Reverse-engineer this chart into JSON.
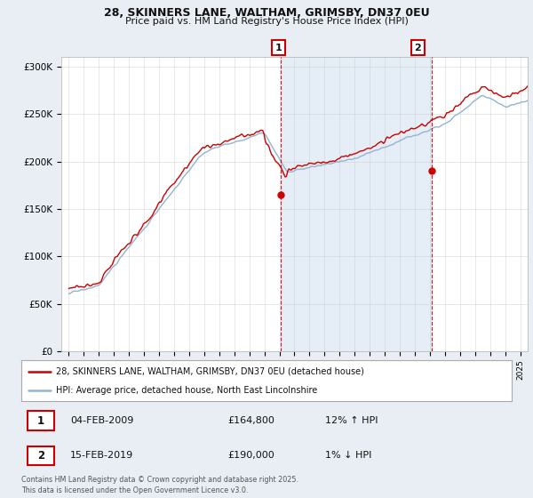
{
  "title1": "28, SKINNERS LANE, WALTHAM, GRIMSBY, DN37 0EU",
  "title2": "Price paid vs. HM Land Registry's House Price Index (HPI)",
  "legend_line1": "28, SKINNERS LANE, WALTHAM, GRIMSBY, DN37 0EU (detached house)",
  "legend_line2": "HPI: Average price, detached house, North East Lincolnshire",
  "footnote": "Contains HM Land Registry data © Crown copyright and database right 2025.\nThis data is licensed under the Open Government Licence v3.0.",
  "sale1_date": "04-FEB-2009",
  "sale1_price": "£164,800",
  "sale1_hpi": "12% ↑ HPI",
  "sale2_date": "15-FEB-2019",
  "sale2_price": "£190,000",
  "sale2_hpi": "1% ↓ HPI",
  "sale1_x": 2009.09,
  "sale1_y": 164800,
  "sale2_x": 2019.12,
  "sale2_y": 190000,
  "vline1_x": 2009.09,
  "vline2_x": 2019.12,
  "ylim": [
    0,
    310000
  ],
  "xlim_start": 1994.5,
  "xlim_end": 2025.5,
  "background_color": "#e8eef4",
  "plot_bg_color": "#ffffff",
  "red_color": "#cc0000",
  "blue_color": "#92b4d0",
  "fill_color": "#dae8f4",
  "vline_color": "#cc0000",
  "grid_color": "#cccccc"
}
